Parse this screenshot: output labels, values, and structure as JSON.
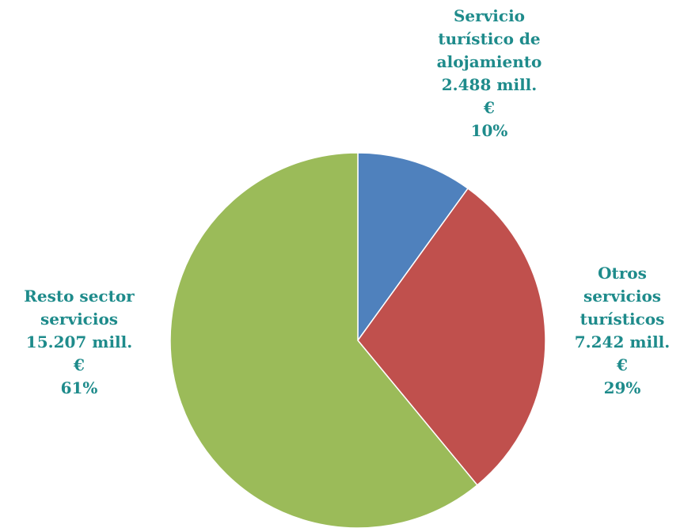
{
  "chart_data": {
    "type": "pie",
    "start_angle_deg": 0,
    "direction": "clockwise",
    "slices": [
      {
        "label_lines": [
          "Servicio",
          "turístico de",
          "alojamiento",
          "2.488 mill.",
          "€",
          "10%"
        ],
        "value": 2488,
        "percent": 10,
        "color": "#4f81bd"
      },
      {
        "label_lines": [
          "Otros",
          "servicios",
          "turísticos",
          "7.242 mill.",
          "€",
          "29%"
        ],
        "value": 7242,
        "percent": 29,
        "color": "#c0504d"
      },
      {
        "label_lines": [
          "Resto sector",
          "servicios",
          "15.207 mill.",
          "€",
          "61%"
        ],
        "value": 15207,
        "percent": 61,
        "color": "#9bbb59"
      }
    ],
    "label_color": "#1e8b8b",
    "unit": "mill. €"
  }
}
